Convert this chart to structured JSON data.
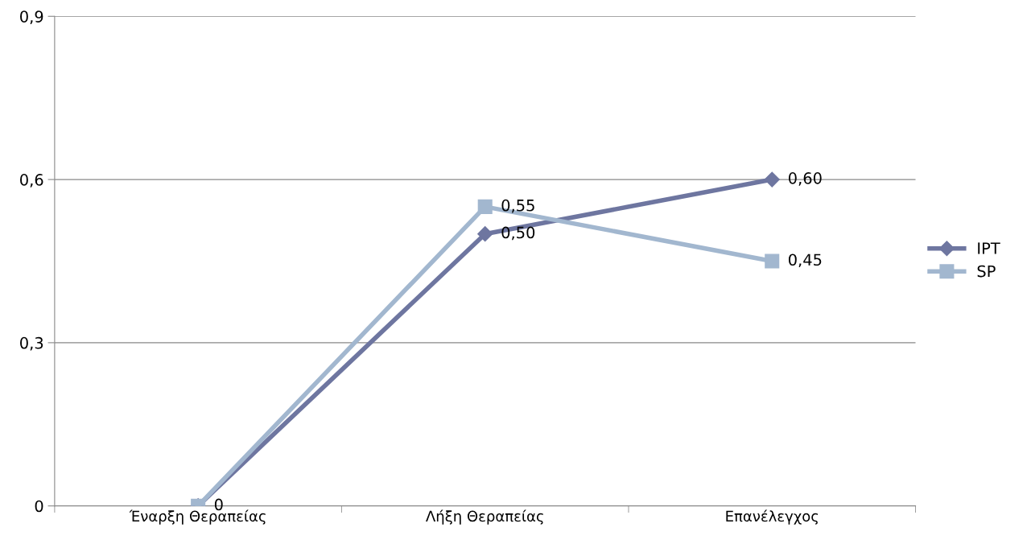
{
  "chart_data": {
    "type": "line",
    "categories": [
      "Έναρξη Θεραπείας",
      "Λήξη Θεραπείας",
      "Επανέλεγχος"
    ],
    "series": [
      {
        "name": "IPT",
        "color": "#6e76a0",
        "marker": "diamond",
        "values": [
          0,
          0.5,
          0.6
        ],
        "value_labels": [
          "0",
          "0,50",
          "0,60"
        ]
      },
      {
        "name": "SP",
        "color": "#a2b7cf",
        "marker": "square",
        "values": [
          0,
          0.55,
          0.45
        ],
        "value_labels": [
          null,
          "0,55",
          "0,45"
        ]
      }
    ],
    "ylim": [
      0,
      0.9
    ],
    "yticks": [
      {
        "value": 0,
        "label": "0"
      },
      {
        "value": 0.3,
        "label": "0,3"
      },
      {
        "value": 0.6,
        "label": "0,6"
      },
      {
        "value": 0.9,
        "label": "0,9"
      }
    ],
    "grid": "y",
    "legend": "right"
  }
}
